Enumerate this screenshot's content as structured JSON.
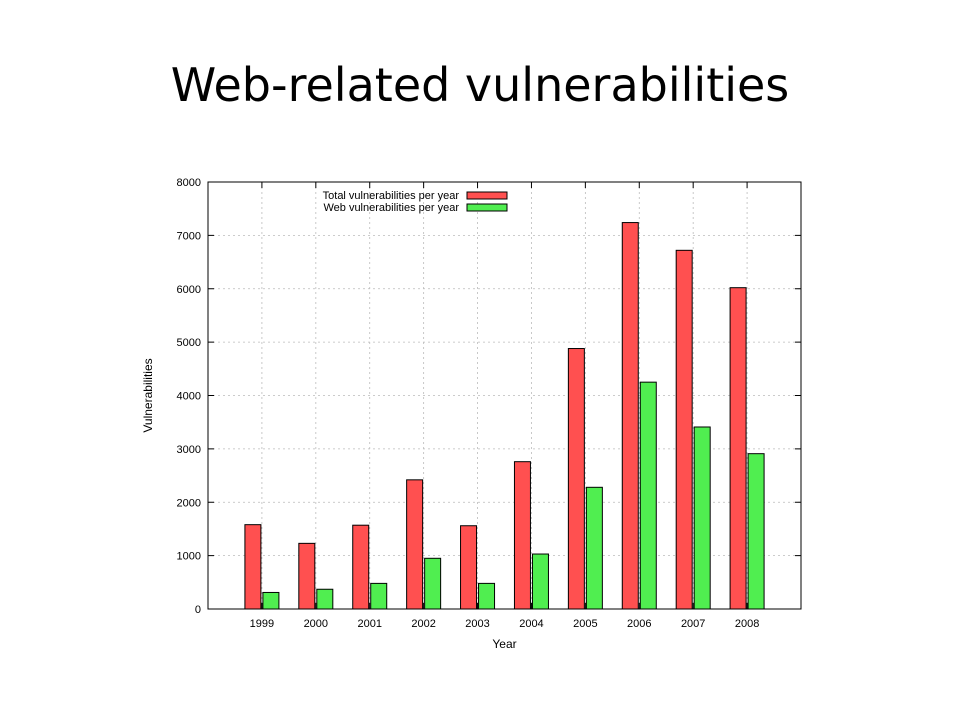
{
  "slide": {
    "title": "Web-related vulnerabilities"
  },
  "chart_data": {
    "type": "bar",
    "categories": [
      "1999",
      "2000",
      "2001",
      "2002",
      "2003",
      "2004",
      "2005",
      "2006",
      "2007",
      "2008"
    ],
    "series": [
      {
        "name": "Total vulnerabilities per year",
        "color": "#ff5050",
        "values": [
          1580,
          1230,
          1570,
          2420,
          1560,
          2760,
          4880,
          7240,
          6720,
          6020
        ]
      },
      {
        "name": "Web vulnerabilities per year",
        "color": "#50ee50",
        "values": [
          310,
          370,
          480,
          950,
          480,
          1030,
          2280,
          4250,
          3410,
          2910
        ]
      }
    ],
    "xlabel": "Year",
    "ylabel": "Vulnerabilities",
    "ylim": [
      0,
      8000
    ],
    "yticks": [
      0,
      1000,
      2000,
      3000,
      4000,
      5000,
      6000,
      7000,
      8000
    ],
    "grid": true,
    "legend_position": "top-left"
  }
}
